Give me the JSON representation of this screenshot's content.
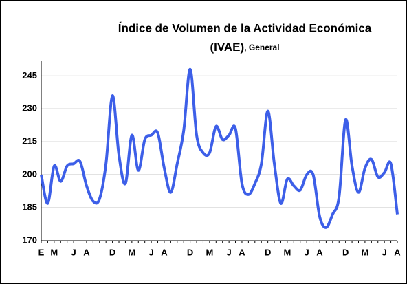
{
  "chart_data": {
    "type": "line",
    "title": "Índice de Volumen de la Actividad Económica",
    "subtitle": "(IVAE)",
    "subtitle_note": ", General",
    "categories": [
      "E",
      null,
      "M",
      null,
      null,
      "J",
      null,
      "A",
      null,
      null,
      null,
      "D",
      null,
      null,
      "M",
      null,
      null,
      "J",
      null,
      "A",
      null,
      null,
      null,
      "D",
      null,
      null,
      "M",
      null,
      null,
      "J",
      null,
      "A",
      null,
      null,
      null,
      "D",
      null,
      null,
      "M",
      null,
      null,
      "J",
      null,
      "A",
      null,
      null,
      null,
      "D",
      null,
      null,
      "M",
      null,
      null,
      "J",
      null,
      "A"
    ],
    "series": [
      {
        "name": "IVAE",
        "color": "#3d5fe8",
        "values": [
          200,
          187,
          204,
          197,
          204,
          205,
          206,
          195,
          188,
          189,
          205,
          236,
          209,
          196,
          218,
          202,
          216,
          218,
          219,
          203,
          192,
          205,
          220,
          248,
          218,
          210,
          210,
          222,
          216,
          218,
          221,
          196,
          191,
          196,
          205,
          229,
          205,
          187,
          198,
          195,
          193,
          200,
          200,
          181,
          176,
          182,
          190,
          225,
          204,
          192,
          203,
          207,
          199,
          201,
          205,
          182
        ]
      }
    ],
    "ylim": [
      170,
      252
    ],
    "yticks": [
      170,
      185,
      200,
      215,
      230,
      245
    ],
    "grid": true
  }
}
